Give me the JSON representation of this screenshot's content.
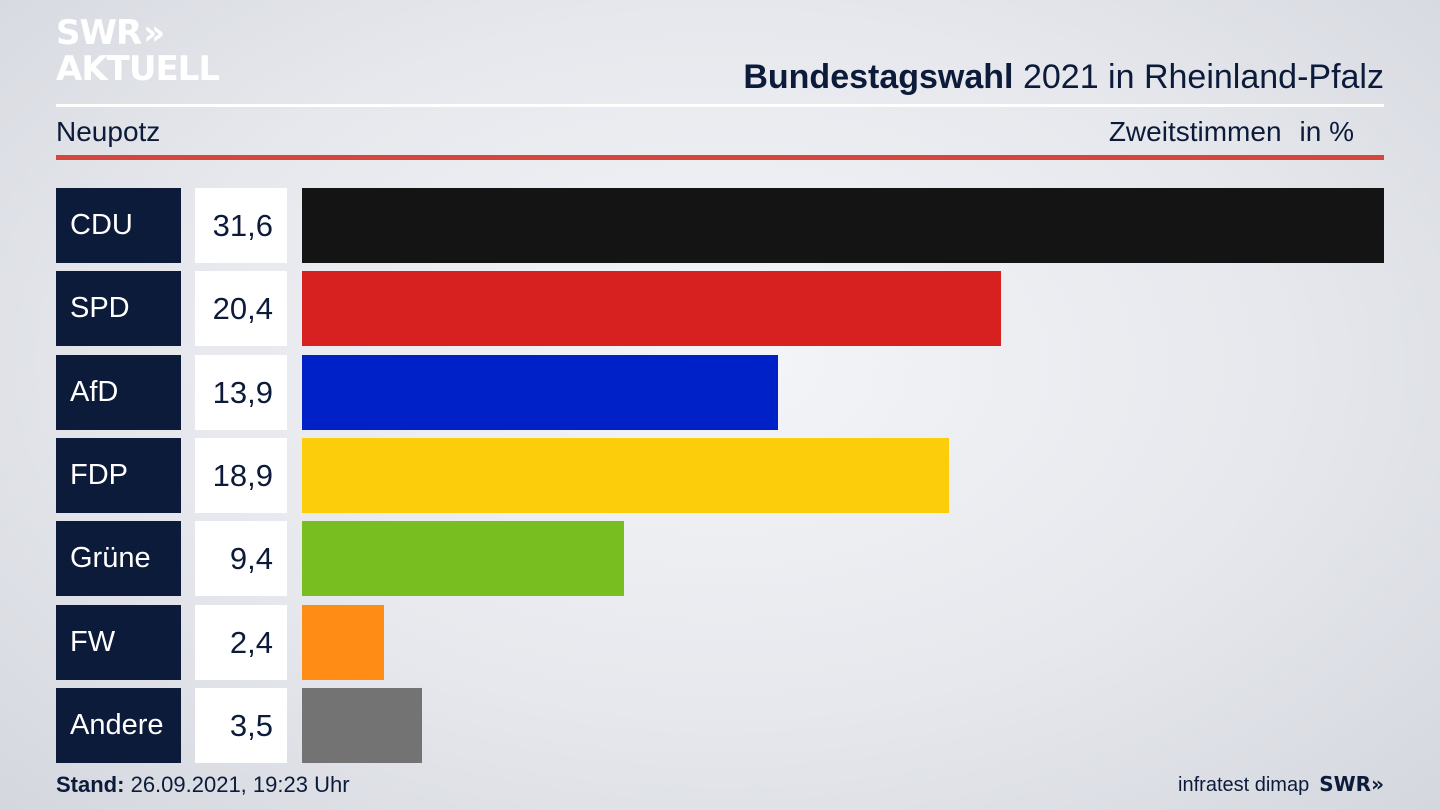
{
  "branding": {
    "logo_line1": "SWR",
    "logo_arrows": "»",
    "logo_line2": "AKTUELL",
    "footer_logo": "SWR",
    "footer_logo_arrows": "»"
  },
  "header": {
    "title_bold": "Bundestagswahl",
    "title_rest": "2021 in Rheinland-Pfalz",
    "location": "Neupotz",
    "measure": "Zweitstimmen",
    "unit": "in %"
  },
  "chart_data": {
    "type": "bar",
    "orientation": "horizontal",
    "categories": [
      "CDU",
      "SPD",
      "AfD",
      "FDP",
      "Grüne",
      "FW",
      "Andere"
    ],
    "values": [
      31.6,
      20.4,
      13.9,
      18.9,
      9.4,
      2.4,
      3.5
    ],
    "value_labels": [
      "31,6",
      "20,4",
      "13,9",
      "18,9",
      "9,4",
      "2,4",
      "3,5"
    ],
    "colors": [
      "#141414",
      "#d72020",
      "#0020c8",
      "#fccd0a",
      "#78be20",
      "#ff8c14",
      "#737373"
    ],
    "xlim": [
      0,
      31.6
    ]
  },
  "footer": {
    "stand_label": "Stand:",
    "stand_value": "26.09.2021, 19:23 Uhr",
    "source": "infratest dimap"
  }
}
